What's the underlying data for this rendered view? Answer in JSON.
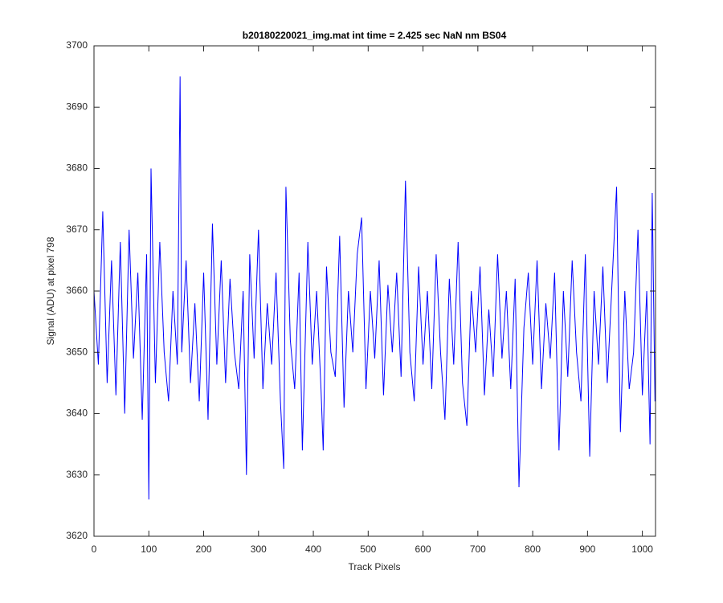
{
  "chart_data": {
    "type": "line",
    "title": "b20180220021_img.mat int time = 2.425 sec  NaN nm BS04",
    "x_label": "Track Pixels",
    "y_label": "Signal (ADU) at pixel 798",
    "xlim": [
      0,
      1024
    ],
    "ylim": [
      3620,
      3700
    ],
    "xticks": [
      0,
      100,
      200,
      300,
      400,
      500,
      600,
      700,
      800,
      900,
      1000
    ],
    "yticks": [
      3620,
      3630,
      3640,
      3650,
      3660,
      3670,
      3680,
      3690,
      3700
    ],
    "grid": false,
    "series": [
      {
        "color": "#0000ff",
        "x": [
          0,
          8,
          16,
          24,
          32,
          40,
          48,
          56,
          64,
          72,
          80,
          88,
          96,
          100,
          104,
          112,
          120,
          128,
          136,
          144,
          152,
          157,
          160,
          168,
          176,
          184,
          192,
          200,
          208,
          216,
          224,
          232,
          240,
          248,
          256,
          264,
          272,
          278,
          284,
          292,
          300,
          308,
          316,
          324,
          332,
          340,
          346,
          350,
          358,
          366,
          374,
          380,
          390,
          398,
          406,
          414,
          418,
          424,
          432,
          440,
          448,
          456,
          464,
          472,
          480,
          488,
          496,
          504,
          512,
          520,
          528,
          536,
          544,
          552,
          560,
          568,
          576,
          584,
          592,
          600,
          608,
          616,
          624,
          632,
          640,
          648,
          656,
          664,
          672,
          680,
          688,
          696,
          704,
          712,
          720,
          728,
          736,
          744,
          752,
          760,
          768,
          775,
          784,
          792,
          800,
          808,
          816,
          824,
          832,
          840,
          848,
          856,
          864,
          872,
          880,
          888,
          896,
          904,
          912,
          920,
          928,
          936,
          944,
          953,
          960,
          968,
          976,
          984,
          992,
          1000,
          1008,
          1014,
          1018,
          1023
        ],
        "values": [
          3660,
          3648,
          3673,
          3645,
          3665,
          3643,
          3668,
          3640,
          3670,
          3649,
          3663,
          3639,
          3666,
          3626,
          3680,
          3645,
          3668,
          3650,
          3642,
          3660,
          3648,
          3695,
          3650,
          3665,
          3645,
          3658,
          3642,
          3663,
          3639,
          3671,
          3648,
          3665,
          3645,
          3662,
          3650,
          3644,
          3660,
          3630,
          3666,
          3649,
          3670,
          3644,
          3658,
          3648,
          3663,
          3642,
          3631,
          3677,
          3652,
          3644,
          3663,
          3634,
          3668,
          3648,
          3660,
          3644,
          3634,
          3664,
          3650,
          3646,
          3669,
          3641,
          3660,
          3650,
          3666,
          3672,
          3644,
          3660,
          3649,
          3665,
          3643,
          3661,
          3650,
          3663,
          3646,
          3678,
          3650,
          3642,
          3664,
          3648,
          3660,
          3644,
          3666,
          3650,
          3639,
          3662,
          3648,
          3668,
          3645,
          3638,
          3660,
          3650,
          3664,
          3643,
          3657,
          3646,
          3666,
          3649,
          3660,
          3644,
          3662,
          3628,
          3654,
          3663,
          3648,
          3665,
          3644,
          3658,
          3649,
          3663,
          3634,
          3660,
          3646,
          3665,
          3650,
          3642,
          3666,
          3633,
          3660,
          3648,
          3664,
          3645,
          3660,
          3677,
          3637,
          3660,
          3644,
          3650,
          3670,
          3643,
          3660,
          3635,
          3676,
          3642
        ]
      }
    ]
  }
}
